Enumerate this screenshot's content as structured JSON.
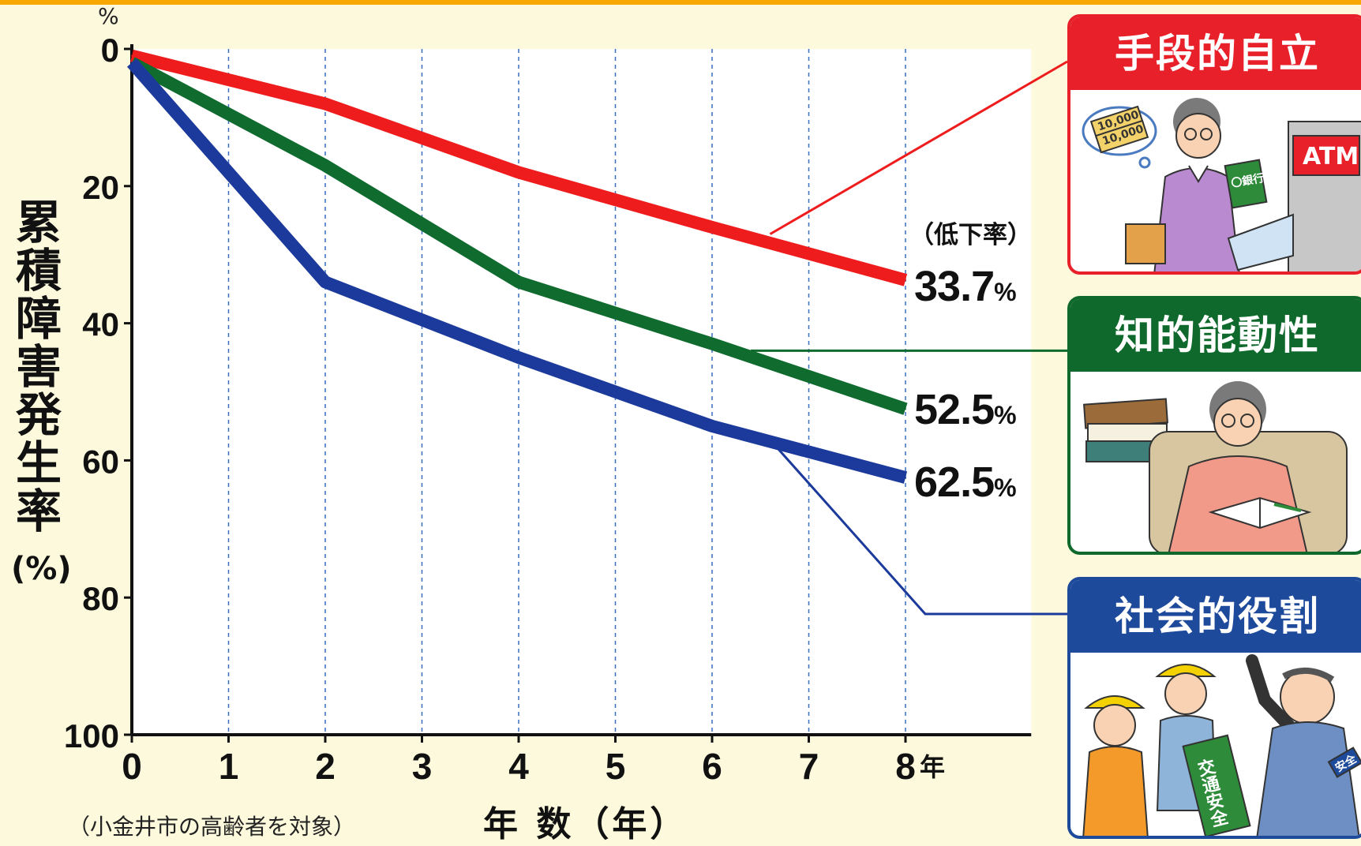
{
  "chart_data": {
    "type": "line",
    "x": [
      0,
      2,
      4,
      6,
      8
    ],
    "x_ticks": [
      "0",
      "1",
      "2",
      "3",
      "4",
      "5",
      "6",
      "7",
      "8"
    ],
    "x_unit_suffix": "年",
    "y_ticks": [
      "0",
      "20",
      "40",
      "60",
      "80",
      "100"
    ],
    "ylim": [
      0,
      100
    ],
    "xlim": [
      0,
      9.3
    ],
    "y_inverted": true,
    "grid": "vertical dashed",
    "top_unit": "%",
    "xlabel": "年 数（年）",
    "ylabel": "累積障害発生率",
    "ylabel_unit": "(%)",
    "note": "（小金井市の高齢者を対象）",
    "rate_header": "（低下率）",
    "series": [
      {
        "name": "手段的自立",
        "values": [
          1,
          8,
          18,
          26,
          33.7
        ],
        "color": "#ee1c1c",
        "end_label": "33.7",
        "end_label_unit": "%"
      },
      {
        "name": "知的能動性",
        "values": [
          2,
          17,
          34,
          43,
          52.5
        ],
        "color": "#0f6b2e",
        "end_label": "52.5",
        "end_label_unit": "%"
      },
      {
        "name": "社会的役割",
        "values": [
          2,
          34,
          45,
          55,
          62.5
        ],
        "color": "#1c3a9b",
        "end_label": "62.5",
        "end_label_unit": "%"
      }
    ]
  },
  "panels": [
    {
      "title": "手段的自立",
      "color": "#e8202a",
      "art": {
        "money_line1": "10,000",
        "money_line2": "10,000",
        "bank": "〇銀行",
        "atm": "ATM"
      }
    },
    {
      "title": "知的能動性",
      "color": "#10692c",
      "art": {}
    },
    {
      "title": "社会的役割",
      "color": "#1e4a9c",
      "art": {
        "sign": "交通安全",
        "armband": "安全"
      }
    }
  ]
}
